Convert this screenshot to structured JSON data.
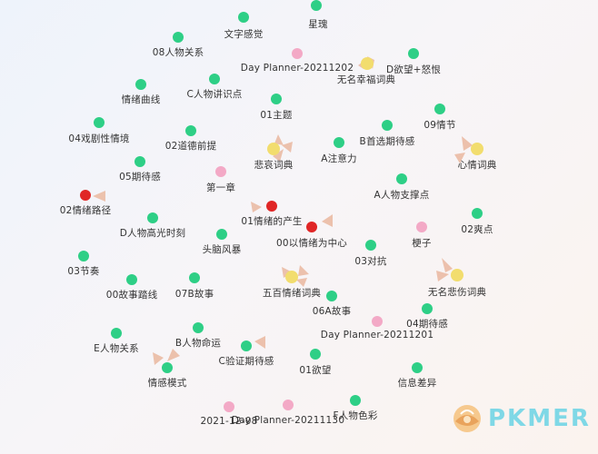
{
  "graph": {
    "nodes": [
      {
        "label": "星瑰"
      },
      {
        "label": "文字感觉"
      },
      {
        "label": "08人物关系"
      },
      {
        "label": "Day Planner-20211202"
      },
      {
        "label": "无名幸福词典"
      },
      {
        "label": "D欲望+怒恨"
      },
      {
        "label": "情绪曲线"
      },
      {
        "label": "C人物讲识点"
      },
      {
        "label": "01主题"
      },
      {
        "label": "09情节"
      },
      {
        "label": "04戏剧性情境"
      },
      {
        "label": "02道德前提"
      },
      {
        "label": "B首选期待感"
      },
      {
        "label": "悲哀词典"
      },
      {
        "label": "A注意力"
      },
      {
        "label": "心情词典"
      },
      {
        "label": "05期待感"
      },
      {
        "label": "第一章"
      },
      {
        "label": "A人物支撑点"
      },
      {
        "label": "02情绪路径"
      },
      {
        "label": "01情绪的产生"
      },
      {
        "label": "D人物高光时刻"
      },
      {
        "label": "00以情绪为中心"
      },
      {
        "label": "02爽点"
      },
      {
        "label": "头脑风暴"
      },
      {
        "label": "梗子"
      },
      {
        "label": "03节奏"
      },
      {
        "label": "03对抗"
      },
      {
        "label": "00故事踏线"
      },
      {
        "label": "07B故事"
      },
      {
        "label": "五百情绪词典"
      },
      {
        "label": "无名悲伤词典"
      },
      {
        "label": "06A故事"
      },
      {
        "label": "04期待感"
      },
      {
        "label": "Day Planner-20211201"
      },
      {
        "label": "B人物命运"
      },
      {
        "label": "E人物关系"
      },
      {
        "label": "C验证期待感"
      },
      {
        "label": "01欲望"
      },
      {
        "label": "情感模式"
      },
      {
        "label": "信息差异"
      },
      {
        "label": "F人物色彩"
      },
      {
        "label": "2021-12-08"
      },
      {
        "label": "Day Planner-20211130"
      }
    ]
  },
  "watermark": {
    "text": "PKMER"
  },
  "colors": {
    "green": "#2ecf86",
    "pink": "#f3a9c6",
    "red": "#e02626",
    "yellow": "#f2dd6e",
    "arrow": "#eab8a0",
    "watermark": "#7fd8e6"
  }
}
